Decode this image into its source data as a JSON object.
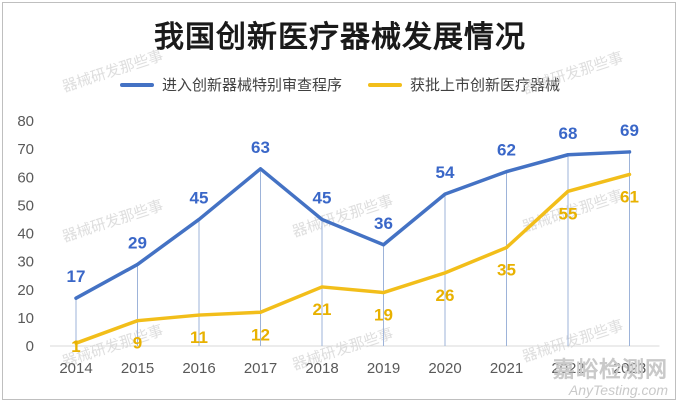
{
  "chart_data": {
    "type": "line",
    "title": "我国创新医疗器械发展情况",
    "categories": [
      "2014",
      "2015",
      "2016",
      "2017",
      "2018",
      "2019",
      "2020",
      "2021",
      "2022",
      "2023"
    ],
    "series": [
      {
        "name": "进入创新器械特别审查程序",
        "color": "#4472C4",
        "values": [
          17,
          29,
          45,
          63,
          45,
          36,
          54,
          62,
          68,
          69
        ]
      },
      {
        "name": "获批上市创新医疗器械",
        "color": "#F2BE1A",
        "values": [
          1,
          9,
          11,
          12,
          21,
          19,
          26,
          35,
          55,
          61
        ]
      }
    ],
    "ylim": [
      0,
      80
    ],
    "yticks": [
      "0",
      "10",
      "20",
      "30",
      "40",
      "50",
      "60",
      "70",
      "80"
    ],
    "grid": false,
    "legend": "top"
  },
  "watermark": "器械研发那些事",
  "brand": {
    "cn": "嘉峪检测网",
    "en": "AnyTesting.com"
  }
}
